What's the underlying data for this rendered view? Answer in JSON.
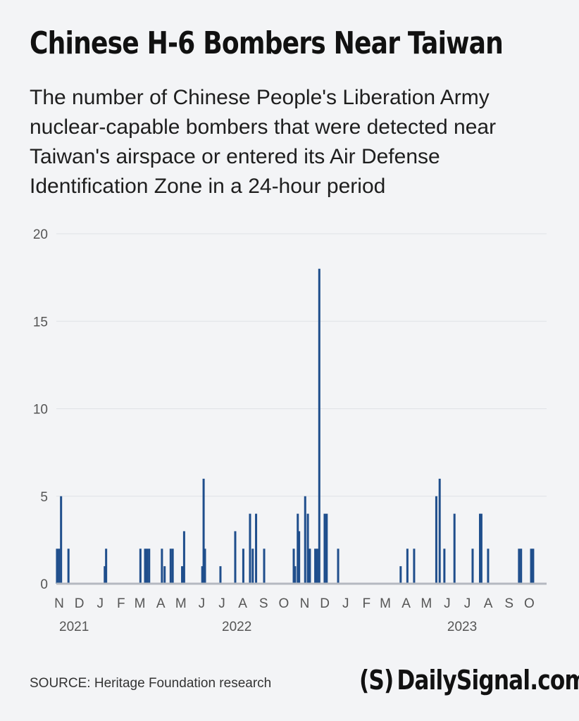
{
  "header": {
    "title": "Chinese H-6 Bombers Near Taiwan",
    "subtitle": "The number of Chinese People's Liberation Army nuclear-capable bombers that were detected near Taiwan's airspace or entered its Air Defense Identification Zone in a 24-hour period"
  },
  "footer": {
    "source": "SOURCE: Heritage Foundation research",
    "logo_mark": "(S)",
    "logo_text": "DailySignal.com"
  },
  "colors": {
    "bar": "#1f4e8c",
    "baseline": "#b5b9c0",
    "grid": "#dfe2e6"
  },
  "chart_data": {
    "type": "bar",
    "title": "Chinese H-6 Bombers Near Taiwan",
    "xlabel": "",
    "ylabel": "",
    "ylim": [
      0,
      20
    ],
    "yticks": [
      0,
      5,
      10,
      15,
      20
    ],
    "grid": true,
    "x_tick_labels": [
      "N",
      "D",
      "J",
      "F",
      "M",
      "A",
      "M",
      "J",
      "J",
      "A",
      "S",
      "O",
      "N",
      "D",
      "J",
      "F",
      "M",
      "A",
      "M",
      "J",
      "J",
      "A",
      "S",
      "O"
    ],
    "year_labels": [
      {
        "label": "2021",
        "month": "Nov 2021"
      },
      {
        "label": "2022",
        "month": "Jul 2022"
      },
      {
        "label": "2023",
        "month": "Jun 2023"
      }
    ],
    "x_start": "2021-11-01",
    "x_end": "2023-10-31",
    "points": [
      {
        "date": "2021-11-02",
        "value": 2
      },
      {
        "date": "2021-11-05",
        "value": 2
      },
      {
        "date": "2021-11-08",
        "value": 5
      },
      {
        "date": "2021-11-19",
        "value": 2
      },
      {
        "date": "2022-01-12",
        "value": 1
      },
      {
        "date": "2022-01-14",
        "value": 2
      },
      {
        "date": "2022-03-06",
        "value": 2
      },
      {
        "date": "2022-03-13",
        "value": 2
      },
      {
        "date": "2022-03-16",
        "value": 2
      },
      {
        "date": "2022-03-19",
        "value": 2
      },
      {
        "date": "2022-04-07",
        "value": 2
      },
      {
        "date": "2022-04-11",
        "value": 1
      },
      {
        "date": "2022-04-20",
        "value": 2
      },
      {
        "date": "2022-04-23",
        "value": 2
      },
      {
        "date": "2022-05-07",
        "value": 1
      },
      {
        "date": "2022-05-10",
        "value": 3
      },
      {
        "date": "2022-06-06",
        "value": 1
      },
      {
        "date": "2022-06-08",
        "value": 6
      },
      {
        "date": "2022-06-10",
        "value": 2
      },
      {
        "date": "2022-07-03",
        "value": 1
      },
      {
        "date": "2022-07-25",
        "value": 3
      },
      {
        "date": "2022-08-06",
        "value": 2
      },
      {
        "date": "2022-08-16",
        "value": 4
      },
      {
        "date": "2022-08-20",
        "value": 2
      },
      {
        "date": "2022-08-25",
        "value": 4
      },
      {
        "date": "2022-09-06",
        "value": 2
      },
      {
        "date": "2022-10-20",
        "value": 2
      },
      {
        "date": "2022-10-22",
        "value": 1
      },
      {
        "date": "2022-10-26",
        "value": 4
      },
      {
        "date": "2022-10-28",
        "value": 3
      },
      {
        "date": "2022-11-06",
        "value": 5
      },
      {
        "date": "2022-11-10",
        "value": 4
      },
      {
        "date": "2022-11-13",
        "value": 2
      },
      {
        "date": "2022-11-21",
        "value": 2
      },
      {
        "date": "2022-11-24",
        "value": 2
      },
      {
        "date": "2022-11-27",
        "value": 18
      },
      {
        "date": "2022-12-05",
        "value": 4
      },
      {
        "date": "2022-12-08",
        "value": 4
      },
      {
        "date": "2022-12-25",
        "value": 2
      },
      {
        "date": "2023-03-28",
        "value": 1
      },
      {
        "date": "2023-04-07",
        "value": 2
      },
      {
        "date": "2023-04-17",
        "value": 2
      },
      {
        "date": "2023-05-20",
        "value": 5
      },
      {
        "date": "2023-05-25",
        "value": 6
      },
      {
        "date": "2023-06-01",
        "value": 2
      },
      {
        "date": "2023-06-16",
        "value": 4
      },
      {
        "date": "2023-07-13",
        "value": 2
      },
      {
        "date": "2023-07-24",
        "value": 4
      },
      {
        "date": "2023-07-26",
        "value": 4
      },
      {
        "date": "2023-08-05",
        "value": 2
      },
      {
        "date": "2023-09-20",
        "value": 2
      },
      {
        "date": "2023-09-23",
        "value": 2
      },
      {
        "date": "2023-10-08",
        "value": 2
      },
      {
        "date": "2023-10-11",
        "value": 2
      }
    ]
  }
}
